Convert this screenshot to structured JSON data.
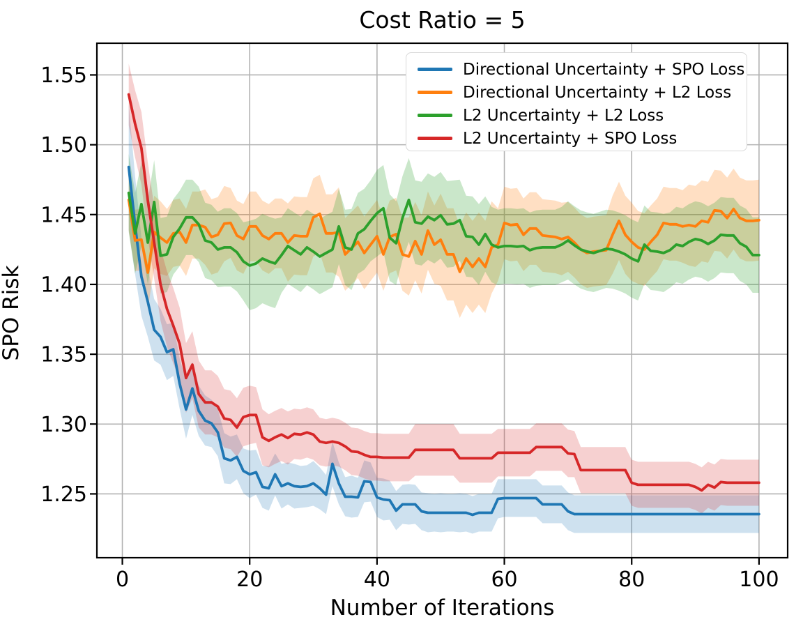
{
  "header": {
    "title": "Cost Ratio = 5"
  },
  "colors": {
    "background": "#ffffff",
    "grid": "#b2b2b2",
    "frame": "#000000",
    "legend_border": "#d8d8d8",
    "blue": "#1f77b4",
    "orange": "#ff7f0e",
    "green": "#2ca02c",
    "red": "#d62728"
  },
  "chart_data": {
    "type": "line",
    "title": "Cost Ratio = 5",
    "xlabel": "Number of Iterations",
    "ylabel": "SPO Risk",
    "xlim": [
      -4.0,
      104.5
    ],
    "ylim": [
      1.2043,
      1.5727
    ],
    "xticks": [
      0,
      20,
      40,
      60,
      80,
      100
    ],
    "yticks": [
      1.25,
      1.3,
      1.35,
      1.4,
      1.45,
      1.5,
      1.55
    ],
    "grid": true,
    "legend_position": "upper right",
    "x": [
      1,
      2,
      3,
      4,
      5,
      6,
      7,
      8,
      9,
      10,
      11,
      12,
      13,
      14,
      15,
      16,
      17,
      18,
      19,
      20,
      21,
      22,
      23,
      24,
      25,
      26,
      27,
      28,
      29,
      30,
      31,
      32,
      33,
      34,
      35,
      36,
      37,
      38,
      39,
      40,
      41,
      42,
      43,
      44,
      45,
      46,
      47,
      48,
      49,
      50,
      51,
      52,
      53,
      54,
      55,
      56,
      57,
      58,
      59,
      60,
      61,
      62,
      63,
      64,
      65,
      66,
      67,
      68,
      69,
      70,
      71,
      72,
      73,
      74,
      75,
      76,
      77,
      78,
      79,
      80,
      81,
      82,
      83,
      84,
      85,
      86,
      87,
      88,
      89,
      90,
      91,
      92,
      93,
      94,
      95,
      96,
      97,
      98,
      99,
      100
    ],
    "series": [
      {
        "name": "Directional Uncertainty + SPO Loss",
        "color": "#1f77b4",
        "band_opacity": 0.22,
        "values": [
          1.484,
          1.4425,
          1.4055,
          1.3875,
          1.3675,
          1.3625,
          1.3515,
          1.3535,
          1.329,
          1.3105,
          1.3255,
          1.3095,
          1.3025,
          1.3005,
          1.294,
          1.2755,
          1.274,
          1.2765,
          1.2665,
          1.264,
          1.2655,
          1.255,
          1.254,
          1.264,
          1.2555,
          1.2575,
          1.2555,
          1.255,
          1.2555,
          1.2575,
          1.254,
          1.2495,
          1.2715,
          1.2575,
          1.248,
          1.248,
          1.2475,
          1.259,
          1.2585,
          1.2475,
          1.246,
          1.2455,
          1.238,
          1.2425,
          1.2425,
          1.2425,
          1.2375,
          1.2365,
          1.2365,
          1.2365,
          1.2365,
          1.2365,
          1.2365,
          1.2365,
          1.235,
          1.2365,
          1.2365,
          1.2365,
          1.2465,
          1.247,
          1.247,
          1.247,
          1.247,
          1.247,
          1.247,
          1.2425,
          1.2425,
          1.2425,
          1.2425,
          1.2375,
          1.2355,
          1.2355,
          1.2355,
          1.2355,
          1.2355,
          1.2355,
          1.2355,
          1.2355,
          1.2355,
          1.2355,
          1.2355,
          1.2355,
          1.2355,
          1.2355,
          1.2355,
          1.2355,
          1.2355,
          1.2355,
          1.2355,
          1.2355,
          1.2355,
          1.2355,
          1.2355,
          1.2355,
          1.2355,
          1.2355,
          1.2355,
          1.2355,
          1.2355,
          1.2355
        ],
        "band_halfwidth": [
          0.045,
          0.035,
          0.028,
          0.025,
          0.022,
          0.02,
          0.02,
          0.019,
          0.018,
          0.021,
          0.019,
          0.018,
          0.018,
          0.017,
          0.017,
          0.018,
          0.017,
          0.016,
          0.016,
          0.017,
          0.016,
          0.015,
          0.016,
          0.015,
          0.016,
          0.015,
          0.016,
          0.015,
          0.015,
          0.016,
          0.015,
          0.014,
          0.016,
          0.015,
          0.014,
          0.015,
          0.014,
          0.015,
          0.014,
          0.014,
          0.015,
          0.014,
          0.014,
          0.014,
          0.0145,
          0.014,
          0.0135,
          0.014,
          0.0135,
          0.014,
          0.0135,
          0.0135,
          0.014,
          0.0135,
          0.0135,
          0.0135,
          0.0135,
          0.0135,
          0.014,
          0.0135,
          0.0135,
          0.0135,
          0.0135,
          0.0135,
          0.0135,
          0.0135,
          0.0135,
          0.0135,
          0.0135,
          0.0135,
          0.0135,
          0.0135,
          0.0135,
          0.0135,
          0.0135,
          0.0135,
          0.0135,
          0.0135,
          0.0135,
          0.0135,
          0.0135,
          0.0135,
          0.0135,
          0.0135,
          0.0135,
          0.0135,
          0.0135,
          0.0135,
          0.0135,
          0.0135,
          0.0135,
          0.0135,
          0.0135,
          0.0135,
          0.0135,
          0.0135,
          0.0135,
          0.0135,
          0.0135,
          0.0135
        ]
      },
      {
        "name": "Directional Uncertainty + L2 Loss",
        "color": "#ff7f0e",
        "band_opacity": 0.25,
        "values": [
          1.4605,
          1.4315,
          1.432,
          1.4085,
          1.4375,
          1.4335,
          1.43,
          1.4365,
          1.4375,
          1.43,
          1.4425,
          1.4425,
          1.441,
          1.434,
          1.4355,
          1.4435,
          1.444,
          1.435,
          1.4325,
          1.4415,
          1.4415,
          1.435,
          1.4325,
          1.4365,
          1.4365,
          1.43,
          1.435,
          1.4345,
          1.4345,
          1.448,
          1.4505,
          1.4365,
          1.4365,
          1.4375,
          1.4215,
          1.426,
          1.4305,
          1.4225,
          1.4285,
          1.4345,
          1.4215,
          1.434,
          1.436,
          1.4215,
          1.42,
          1.431,
          1.4215,
          1.4385,
          1.4285,
          1.432,
          1.4215,
          1.4215,
          1.409,
          1.4185,
          1.4125,
          1.4185,
          1.4125,
          1.4265,
          1.4285,
          1.444,
          1.4425,
          1.443,
          1.4355,
          1.44,
          1.44,
          1.435,
          1.4345,
          1.434,
          1.4325,
          1.434,
          1.43,
          1.425,
          1.4225,
          1.4235,
          1.424,
          1.4245,
          1.4355,
          1.4455,
          1.4355,
          1.4305,
          1.4265,
          1.425,
          1.4305,
          1.4355,
          1.444,
          1.443,
          1.443,
          1.4415,
          1.4425,
          1.4415,
          1.4455,
          1.4445,
          1.453,
          1.4525,
          1.4475,
          1.454,
          1.4475,
          1.4455,
          1.4455,
          1.446
        ],
        "band_halfwidth": [
          0.022,
          0.022,
          0.022,
          0.026,
          0.026,
          0.026,
          0.024,
          0.024,
          0.024,
          0.024,
          0.024,
          0.024,
          0.027,
          0.027,
          0.027,
          0.027,
          0.025,
          0.025,
          0.025,
          0.025,
          0.025,
          0.025,
          0.025,
          0.025,
          0.025,
          0.028,
          0.028,
          0.028,
          0.028,
          0.028,
          0.028,
          0.028,
          0.028,
          0.032,
          0.026,
          0.026,
          0.026,
          0.026,
          0.026,
          0.026,
          0.026,
          0.026,
          0.026,
          0.026,
          0.028,
          0.028,
          0.028,
          0.028,
          0.028,
          0.033,
          0.033,
          0.033,
          0.033,
          0.033,
          0.033,
          0.033,
          0.033,
          0.033,
          0.026,
          0.026,
          0.026,
          0.026,
          0.026,
          0.026,
          0.026,
          0.026,
          0.026,
          0.026,
          0.026,
          0.025,
          0.025,
          0.025,
          0.025,
          0.025,
          0.025,
          0.025,
          0.028,
          0.028,
          0.028,
          0.028,
          0.026,
          0.026,
          0.026,
          0.026,
          0.026,
          0.026,
          0.026,
          0.026,
          0.029,
          0.029,
          0.029,
          0.029,
          0.029,
          0.029,
          0.029,
          0.029,
          0.029,
          0.029,
          0.029,
          0.029
        ]
      },
      {
        "name": "L2 Uncertainty + L2 Loss",
        "color": "#2ca02c",
        "band_opacity": 0.25,
        "values": [
          1.4655,
          1.4365,
          1.4575,
          1.43,
          1.459,
          1.4205,
          1.4215,
          1.434,
          1.44,
          1.448,
          1.448,
          1.443,
          1.4315,
          1.43,
          1.425,
          1.4265,
          1.4265,
          1.423,
          1.4165,
          1.4135,
          1.415,
          1.4185,
          1.4165,
          1.415,
          1.421,
          1.4275,
          1.4245,
          1.4215,
          1.4265,
          1.4235,
          1.42,
          1.4225,
          1.425,
          1.4415,
          1.4265,
          1.425,
          1.4365,
          1.4395,
          1.4455,
          1.451,
          1.4545,
          1.4335,
          1.4295,
          1.4475,
          1.4605,
          1.4445,
          1.4435,
          1.4485,
          1.446,
          1.4495,
          1.443,
          1.4435,
          1.446,
          1.4345,
          1.434,
          1.4285,
          1.436,
          1.4285,
          1.4265,
          1.4275,
          1.4275,
          1.427,
          1.4275,
          1.4245,
          1.426,
          1.4265,
          1.4265,
          1.4265,
          1.4285,
          1.4315,
          1.428,
          1.425,
          1.4235,
          1.4225,
          1.424,
          1.4255,
          1.425,
          1.4235,
          1.4215,
          1.4185,
          1.4165,
          1.4285,
          1.424,
          1.4235,
          1.4225,
          1.4245,
          1.4285,
          1.4275,
          1.4305,
          1.4325,
          1.4315,
          1.429,
          1.4315,
          1.4355,
          1.435,
          1.435,
          1.4295,
          1.427,
          1.421,
          1.421
        ],
        "band_halfwidth": [
          0.028,
          0.029,
          0.03,
          0.03,
          0.03,
          0.027,
          0.027,
          0.027,
          0.027,
          0.027,
          0.027,
          0.027,
          0.027,
          0.027,
          0.027,
          0.028,
          0.028,
          0.028,
          0.028,
          0.032,
          0.032,
          0.032,
          0.032,
          0.032,
          0.027,
          0.027,
          0.027,
          0.027,
          0.027,
          0.027,
          0.027,
          0.027,
          0.027,
          0.027,
          0.027,
          0.029,
          0.029,
          0.029,
          0.029,
          0.031,
          0.031,
          0.031,
          0.03,
          0.03,
          0.03,
          0.03,
          0.03,
          0.031,
          0.031,
          0.031,
          0.031,
          0.031,
          0.029,
          0.029,
          0.029,
          0.029,
          0.027,
          0.027,
          0.027,
          0.027,
          0.027,
          0.027,
          0.027,
          0.027,
          0.027,
          0.027,
          0.027,
          0.027,
          0.027,
          0.028,
          0.028,
          0.028,
          0.028,
          0.028,
          0.028,
          0.028,
          0.028,
          0.028,
          0.028,
          0.028,
          0.028,
          0.028,
          0.028,
          0.028,
          0.028,
          0.027,
          0.027,
          0.027,
          0.027,
          0.027,
          0.027,
          0.027,
          0.027,
          0.027,
          0.027,
          0.027,
          0.027,
          0.027,
          0.027,
          0.027
        ]
      },
      {
        "name": "L2 Uncertainty + SPO Loss",
        "color": "#d62728",
        "band_opacity": 0.22,
        "values": [
          1.536,
          1.515,
          1.4975,
          1.46,
          1.43,
          1.4,
          1.3825,
          1.3705,
          1.3575,
          1.333,
          1.3425,
          1.3215,
          1.3155,
          1.3155,
          1.3125,
          1.304,
          1.303,
          1.2975,
          1.305,
          1.3065,
          1.3065,
          1.2905,
          1.288,
          1.2905,
          1.2925,
          1.29,
          1.293,
          1.2925,
          1.294,
          1.2925,
          1.2875,
          1.2865,
          1.2875,
          1.2865,
          1.284,
          1.2805,
          1.28,
          1.278,
          1.2765,
          1.2765,
          1.276,
          1.276,
          1.276,
          1.276,
          1.276,
          1.2815,
          1.2815,
          1.2815,
          1.2815,
          1.2815,
          1.2815,
          1.2815,
          1.2755,
          1.2755,
          1.2755,
          1.2755,
          1.2755,
          1.2755,
          1.2795,
          1.2795,
          1.2795,
          1.2795,
          1.2795,
          1.2795,
          1.2835,
          1.2835,
          1.2835,
          1.2835,
          1.2835,
          1.279,
          1.2785,
          1.267,
          1.267,
          1.267,
          1.267,
          1.267,
          1.267,
          1.267,
          1.267,
          1.258,
          1.2565,
          1.2565,
          1.2565,
          1.2565,
          1.2565,
          1.2565,
          1.2565,
          1.2565,
          1.2565,
          1.255,
          1.2525,
          1.2565,
          1.2545,
          1.2585,
          1.258,
          1.258,
          1.258,
          1.258,
          1.258,
          1.258
        ],
        "band_halfwidth": [
          0.022,
          0.024,
          0.026,
          0.027,
          0.026,
          0.026,
          0.027,
          0.027,
          0.026,
          0.025,
          0.024,
          0.024,
          0.023,
          0.023,
          0.022,
          0.021,
          0.021,
          0.021,
          0.021,
          0.021,
          0.02,
          0.02,
          0.019,
          0.019,
          0.019,
          0.019,
          0.018,
          0.018,
          0.018,
          0.018,
          0.017,
          0.017,
          0.017,
          0.017,
          0.017,
          0.017,
          0.017,
          0.017,
          0.017,
          0.017,
          0.017,
          0.017,
          0.017,
          0.017,
          0.017,
          0.0185,
          0.0185,
          0.0185,
          0.0185,
          0.0185,
          0.0185,
          0.0185,
          0.0175,
          0.0175,
          0.0175,
          0.0175,
          0.0175,
          0.0175,
          0.017,
          0.017,
          0.017,
          0.017,
          0.017,
          0.017,
          0.017,
          0.017,
          0.017,
          0.017,
          0.017,
          0.017,
          0.0165,
          0.0165,
          0.0165,
          0.0165,
          0.0165,
          0.0165,
          0.0165,
          0.0165,
          0.0165,
          0.0165,
          0.0165,
          0.0165,
          0.0165,
          0.0165,
          0.0165,
          0.0165,
          0.0165,
          0.0165,
          0.0165,
          0.0165,
          0.0165,
          0.0165,
          0.0165,
          0.0165,
          0.0165,
          0.0165,
          0.0165,
          0.0165,
          0.0165,
          0.0165
        ]
      }
    ]
  }
}
